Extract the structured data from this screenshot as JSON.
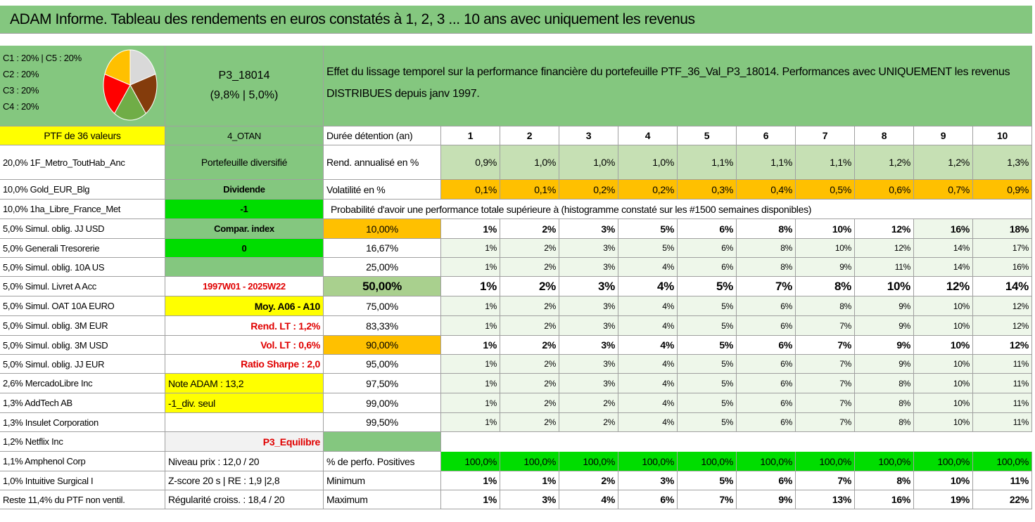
{
  "title": "ADAM Informe. Tableau des rendements en euros constatés à 1, 2, 3 ... 10 ans avec uniquement les revenus",
  "header": {
    "pie_legend": [
      "C1 : 20% | C5 : 20%",
      "C2 : 20%",
      "C3 : 20%",
      "C4 : 20%"
    ],
    "code": "P3_18014",
    "subcode": "(9,8% | 5,0%)",
    "description": "Effet du lissage temporel sur la performance financière du portefeuille PTF_36_Val_P3_18014. Performances avec UNIQUEMENT les revenus DISTRIBUES depuis janv 1997."
  },
  "rows": [
    {
      "a": "PTF de 36 valeurs",
      "b": "4_OTAN",
      "c": "Durée détention (an)",
      "v": [
        1,
        2,
        3,
        4,
        5,
        6,
        7,
        8,
        9,
        10
      ]
    },
    {
      "a": "20,0% 1F_Metro_ToutHab_Anc",
      "b": "Portefeuille diversifié",
      "c": "Rend. annualisé en %",
      "v": [
        "0,9%",
        "1,0%",
        "1,0%",
        "1,0%",
        "1,1%",
        "1,1%",
        "1,1%",
        "1,2%",
        "1,2%",
        "1,3%"
      ]
    },
    {
      "a": "10,0% Gold_EUR_Blg",
      "b": "Dividende",
      "c": "Volatilité en %",
      "v": [
        "0,1%",
        "0,1%",
        "0,2%",
        "0,2%",
        "0,3%",
        "0,4%",
        "0,5%",
        "0,6%",
        "0,7%",
        "0,9%"
      ]
    },
    {
      "a": "10,0% 1ha_Libre_France_Met",
      "b": "-1",
      "span": "Probabilité d'avoir une performance totale supérieure à (histogramme constaté sur les #1500 semaines disponibles)"
    },
    {
      "a": "5,0% Simul. oblig. JJ USD",
      "b": "Compar. index",
      "c": "10,00%",
      "v": [
        "1%",
        "2%",
        "3%",
        "5%",
        "6%",
        "8%",
        "10%",
        "12%",
        "16%",
        "18%"
      ]
    },
    {
      "a": "5,0% Generali Tresorerie",
      "b": "0",
      "c": "16,67%",
      "v": [
        "1%",
        "2%",
        "3%",
        "5%",
        "6%",
        "8%",
        "10%",
        "12%",
        "14%",
        "17%"
      ]
    },
    {
      "a": "5,0% Simul. oblig. 10A US",
      "c": "25,00%",
      "v": [
        "1%",
        "2%",
        "3%",
        "4%",
        "6%",
        "8%",
        "9%",
        "11%",
        "14%",
        "16%"
      ]
    },
    {
      "a": "5,0% Simul. Livret A Acc",
      "b": "1997W01 - 2025W22",
      "c": "50,00%",
      "v": [
        "1%",
        "2%",
        "3%",
        "4%",
        "5%",
        "7%",
        "8%",
        "10%",
        "12%",
        "14%"
      ]
    },
    {
      "a": "5,0% Simul. OAT 10A EURO",
      "b": "Moy. A06 - A10",
      "c": "75,00%",
      "v": [
        "1%",
        "2%",
        "3%",
        "4%",
        "5%",
        "6%",
        "8%",
        "9%",
        "10%",
        "12%"
      ]
    },
    {
      "a": "5,0% Simul. oblig. 3M EUR",
      "b": "Rend. LT : 1,2%",
      "c": "83,33%",
      "v": [
        "1%",
        "2%",
        "3%",
        "4%",
        "5%",
        "6%",
        "7%",
        "9%",
        "10%",
        "12%"
      ]
    },
    {
      "a": "5,0% Simul. oblig. 3M USD",
      "b": "Vol. LT : 0,6%",
      "c": "90,00%",
      "v": [
        "1%",
        "2%",
        "3%",
        "4%",
        "5%",
        "6%",
        "7%",
        "9%",
        "10%",
        "12%"
      ]
    },
    {
      "a": "5,0% Simul. oblig. JJ EUR",
      "b": "Ratio Sharpe : 2,0",
      "c": "95,00%",
      "v": [
        "1%",
        "2%",
        "3%",
        "4%",
        "5%",
        "6%",
        "7%",
        "9%",
        "10%",
        "11%"
      ]
    },
    {
      "a": "2,6% MercadoLibre Inc",
      "b": "Note ADAM : 13,2",
      "c": "97,50%",
      "v": [
        "1%",
        "2%",
        "3%",
        "4%",
        "5%",
        "6%",
        "7%",
        "8%",
        "10%",
        "11%"
      ]
    },
    {
      "a": "1,3% AddTech AB",
      "b": "-1_div. seul",
      "c": "99,00%",
      "v": [
        "1%",
        "2%",
        "2%",
        "4%",
        "5%",
        "6%",
        "7%",
        "8%",
        "10%",
        "11%"
      ]
    },
    {
      "a": "1,3% Insulet Corporation",
      "c": "99,50%",
      "v": [
        "1%",
        "2%",
        "2%",
        "4%",
        "5%",
        "6%",
        "7%",
        "8%",
        "10%",
        "11%"
      ]
    },
    {
      "a": "1,2% Netflix Inc",
      "b": "P3_Equilibre"
    },
    {
      "a": "1,1% Amphenol Corp",
      "b": "Niveau prix : 12,0 / 20",
      "c": "% de perfo. Positives",
      "v": [
        "100,0%",
        "100,0%",
        "100,0%",
        "100,0%",
        "100,0%",
        "100,0%",
        "100,0%",
        "100,0%",
        "100,0%",
        "100,0%"
      ]
    },
    {
      "a": "1,0% Intuitive Surgical I",
      "b": "Z-score 20 s | RE : 1,9 |2,8",
      "c": "Minimum",
      "v": [
        "1%",
        "1%",
        "2%",
        "3%",
        "5%",
        "6%",
        "7%",
        "8%",
        "10%",
        "11%"
      ]
    },
    {
      "a": "Reste 11,4% du PTF non ventil.",
      "b": "Régularité croiss. : 18,4 / 20",
      "c": "Maximum",
      "v": [
        "1%",
        "3%",
        "4%",
        "6%",
        "7%",
        "9%",
        "13%",
        "16%",
        "19%",
        "22%"
      ]
    }
  ]
}
